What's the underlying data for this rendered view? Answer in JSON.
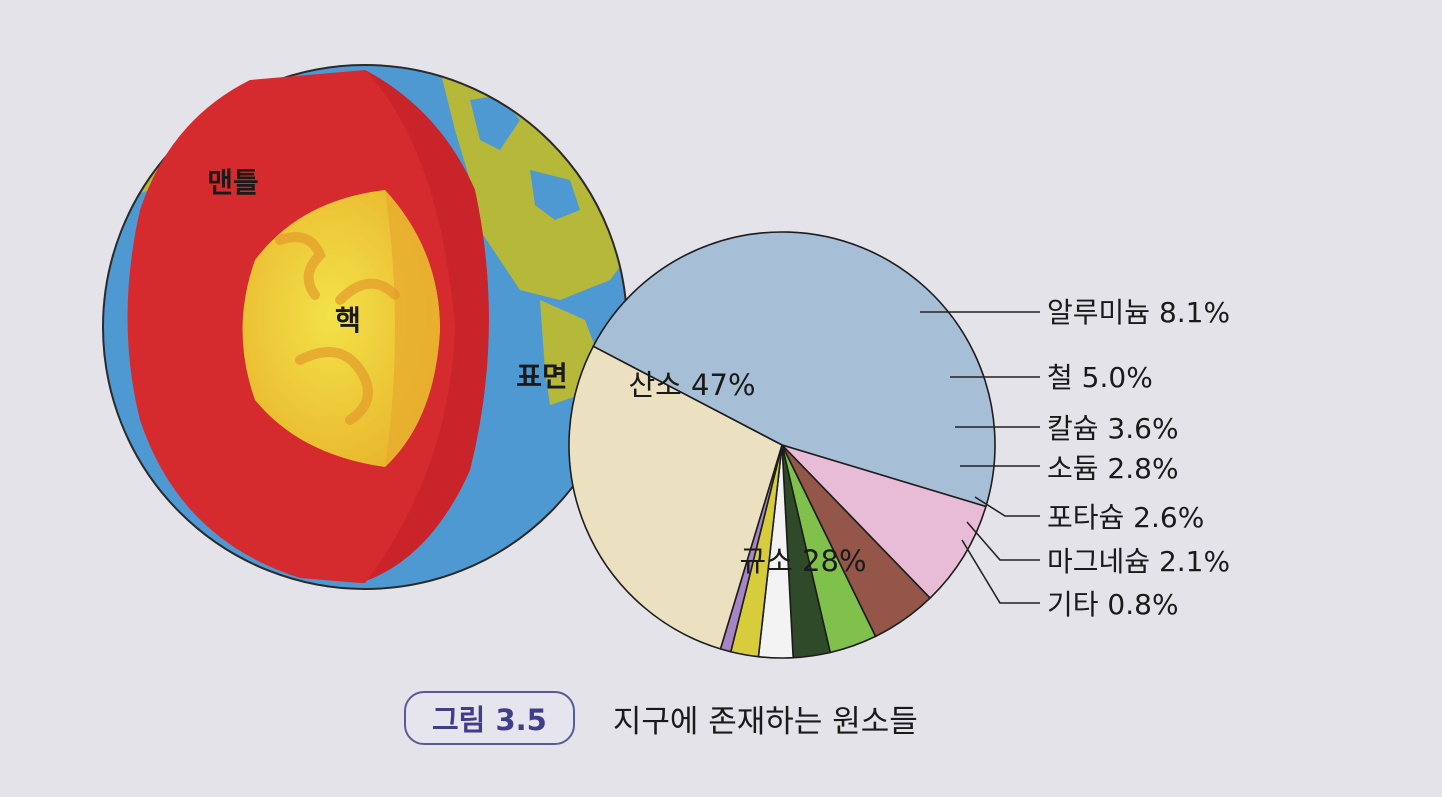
{
  "earth": {
    "labels": {
      "mantle": "맨틀",
      "core": "핵",
      "surface": "표면"
    }
  },
  "chart_data": {
    "type": "pie",
    "title": "",
    "slices": [
      {
        "label": "산소",
        "value": 47,
        "display": "산소 47%",
        "color": "#a7bfd6"
      },
      {
        "label": "알루미늄",
        "value": 8.1,
        "display": "알루미늄 8.1%",
        "color": "#e8bcd6"
      },
      {
        "label": "철",
        "value": 5.0,
        "display": "철 5.0%",
        "color": "#935648"
      },
      {
        "label": "칼슘",
        "value": 3.6,
        "display": "칼슘 3.6%",
        "color": "#7fc14a"
      },
      {
        "label": "소듐",
        "value": 2.8,
        "display": "소듐 2.8%",
        "color": "#2f4a28"
      },
      {
        "label": "포타슘",
        "value": 2.6,
        "display": "포타슘 2.6%",
        "color": "#f3f3f3"
      },
      {
        "label": "마그네슘",
        "value": 2.1,
        "display": "마그네슘 2.1%",
        "color": "#d7cd3c"
      },
      {
        "label": "기타",
        "value": 0.8,
        "display": "기타 0.8%",
        "color": "#a785c4"
      },
      {
        "label": "규소",
        "value": 28,
        "display": "규소 28%",
        "color": "#ebe1c0"
      }
    ]
  },
  "caption": {
    "figure": "그림 3.5",
    "title": "지구에 존재하는 원소들"
  }
}
